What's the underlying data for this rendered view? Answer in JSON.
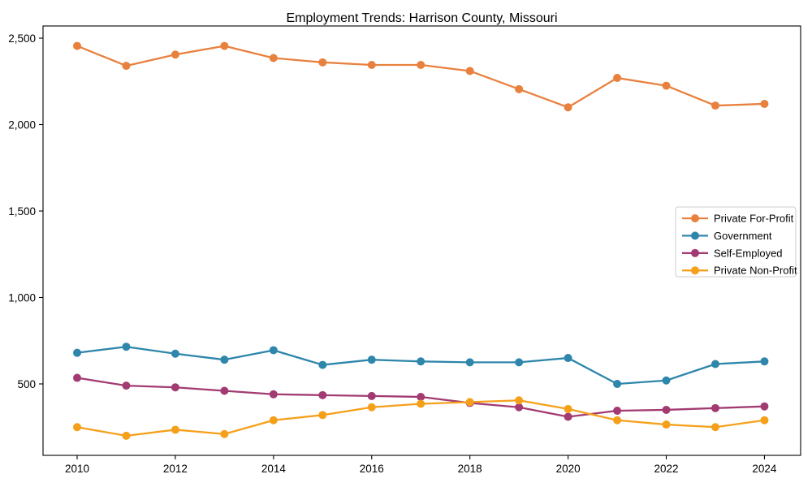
{
  "title": "Employment Trends: Harrison County, Missouri",
  "chart_data": {
    "type": "line",
    "title": "Employment Trends: Harrison County, Missouri",
    "xlabel": "",
    "ylabel": "",
    "x": [
      2010,
      2011,
      2012,
      2013,
      2014,
      2015,
      2016,
      2017,
      2018,
      2019,
      2020,
      2021,
      2022,
      2023,
      2024
    ],
    "series": [
      {
        "name": "Private For-Profit",
        "color": "#E8813E",
        "values": [
          2455,
          2340,
          2405,
          2455,
          2385,
          2360,
          2345,
          2345,
          2310,
          2205,
          2100,
          2270,
          2225,
          2110,
          2120
        ]
      },
      {
        "name": "Government",
        "color": "#2E86AB",
        "values": [
          680,
          715,
          675,
          640,
          695,
          610,
          640,
          630,
          625,
          625,
          650,
          500,
          520,
          615,
          630
        ]
      },
      {
        "name": "Self-Employed",
        "color": "#A23B72",
        "values": [
          535,
          490,
          480,
          460,
          440,
          435,
          430,
          425,
          390,
          365,
          310,
          345,
          350,
          360,
          370
        ]
      },
      {
        "name": "Private Non-Profit",
        "color": "#F5A01B",
        "values": [
          250,
          200,
          235,
          210,
          290,
          320,
          365,
          385,
          395,
          405,
          355,
          290,
          265,
          250,
          290
        ]
      }
    ],
    "xticks": [
      2010,
      2012,
      2014,
      2016,
      2018,
      2020,
      2022,
      2024
    ],
    "yticks": [
      500,
      1000,
      1500,
      2000,
      2500
    ],
    "xlim": [
      2009.3,
      2024.75
    ],
    "ylim": [
      90,
      2570
    ],
    "grid": false,
    "legend_position": "right",
    "legend_labels": [
      "Private For-Profit",
      "Government",
      "Self-Employed",
      "Private Non-Profit"
    ],
    "marker": "circle",
    "axis_color": "#000000",
    "legend_border_color": "#cccccc",
    "background_color": "#ffffff"
  }
}
